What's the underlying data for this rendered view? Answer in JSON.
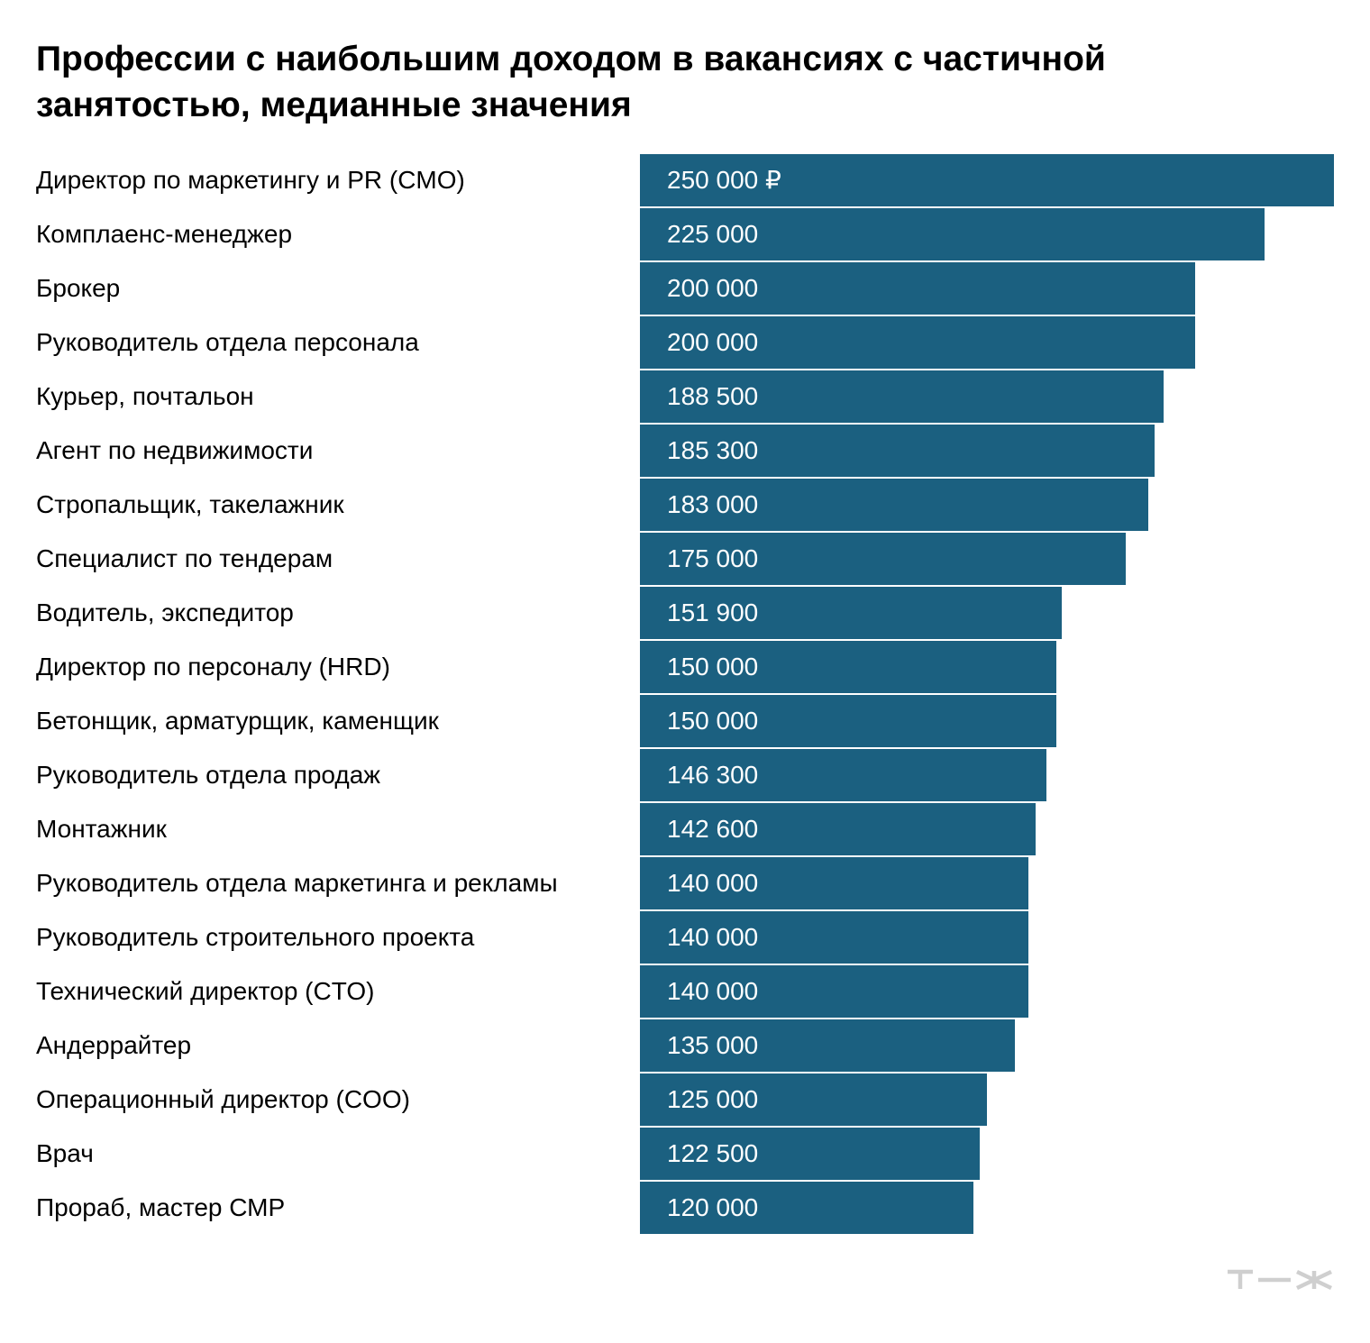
{
  "colors": {
    "bar": "#1b6080",
    "label_text": "#000000",
    "value_text": "#ffffff",
    "logo": "#cfcfcf"
  },
  "chart_data": {
    "type": "bar",
    "orientation": "horizontal",
    "title": "Профессии с наибольшим доходом в вакансиях с частичной занятостью, медианные значения",
    "xlim": [
      0,
      250000
    ],
    "grid": false,
    "categories": [
      "Директор по маркетингу и PR (CMO)",
      "Комплаенс-менеджер",
      "Брокер",
      "Руководитель отдела персонала",
      "Курьер, почтальон",
      "Агент по недвижимости",
      "Стропальщик, такелажник",
      "Специалист по тендерам",
      "Водитель, экспедитор",
      "Директор по персоналу (HRD)",
      "Бетонщик, арматурщик, каменщик",
      "Руководитель отдела продаж",
      "Монтажник",
      "Руководитель отдела маркетинга и рекламы",
      "Руководитель строительного проекта",
      "Технический директор (CTO)",
      "Андеррайтер",
      "Операционный директор (COO)",
      "Врач",
      "Прораб, мастер СМР"
    ],
    "values": [
      250000,
      225000,
      200000,
      200000,
      188500,
      185300,
      183000,
      175000,
      151900,
      150000,
      150000,
      146300,
      142600,
      140000,
      140000,
      140000,
      135000,
      125000,
      122500,
      120000
    ],
    "value_labels": [
      "250 000 ₽",
      "225 000",
      "200 000",
      "200 000",
      "188 500",
      "185 300",
      "183 000",
      "175 000",
      "151 900",
      "150 000",
      "150 000",
      "146 300",
      "142 600",
      "140 000",
      "140 000",
      "140 000",
      "135 000",
      "125 000",
      "122 500",
      "120 000"
    ]
  },
  "logo_text": "т—ж"
}
